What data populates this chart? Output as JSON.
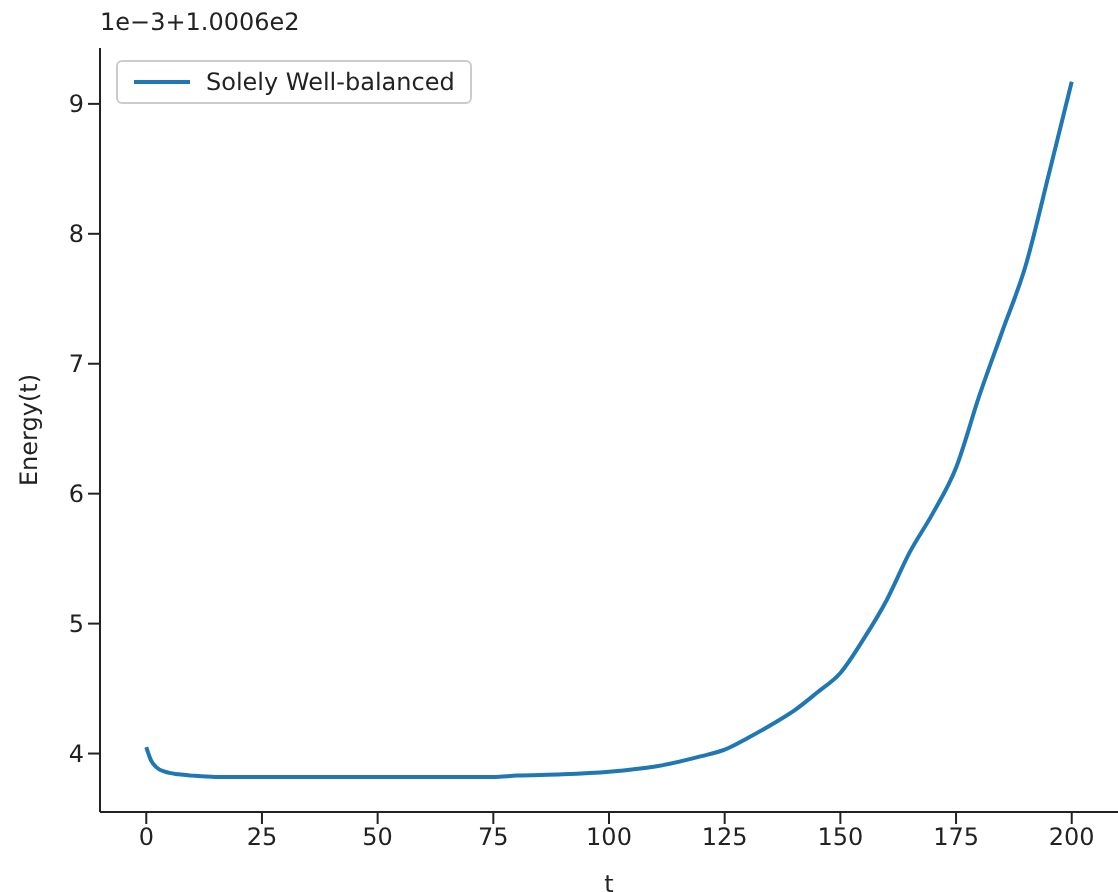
{
  "chart_data": {
    "type": "line",
    "xlabel": "t",
    "ylabel": "Energy(t)",
    "annotations": [
      "1e−3+1.0006e2"
    ],
    "xlim": [
      -10,
      210
    ],
    "xticks": [
      0,
      25,
      50,
      75,
      100,
      125,
      150,
      175,
      200
    ],
    "ylim": [
      3.55,
      9.43
    ],
    "yticks": [
      4,
      5,
      6,
      7,
      8,
      9
    ],
    "grid": false,
    "legend": "top left",
    "series": [
      {
        "name": "Solely Well-balanced",
        "color": "#1f77b4",
        "x": [
          0,
          1,
          2,
          4,
          7,
          10,
          15,
          30,
          45,
          60,
          75,
          80,
          90,
          100,
          110,
          120,
          125,
          130,
          135,
          140,
          145,
          150,
          155,
          160,
          165,
          170,
          175,
          180,
          185,
          190,
          195,
          200
        ],
        "values": [
          4.05,
          3.95,
          3.9,
          3.86,
          3.84,
          3.83,
          3.82,
          3.82,
          3.82,
          3.82,
          3.82,
          3.83,
          3.84,
          3.86,
          3.9,
          3.98,
          4.03,
          4.12,
          4.22,
          4.33,
          4.47,
          4.62,
          4.88,
          5.18,
          5.55,
          5.85,
          6.2,
          6.75,
          7.25,
          7.75,
          8.45,
          9.17
        ]
      }
    ]
  }
}
